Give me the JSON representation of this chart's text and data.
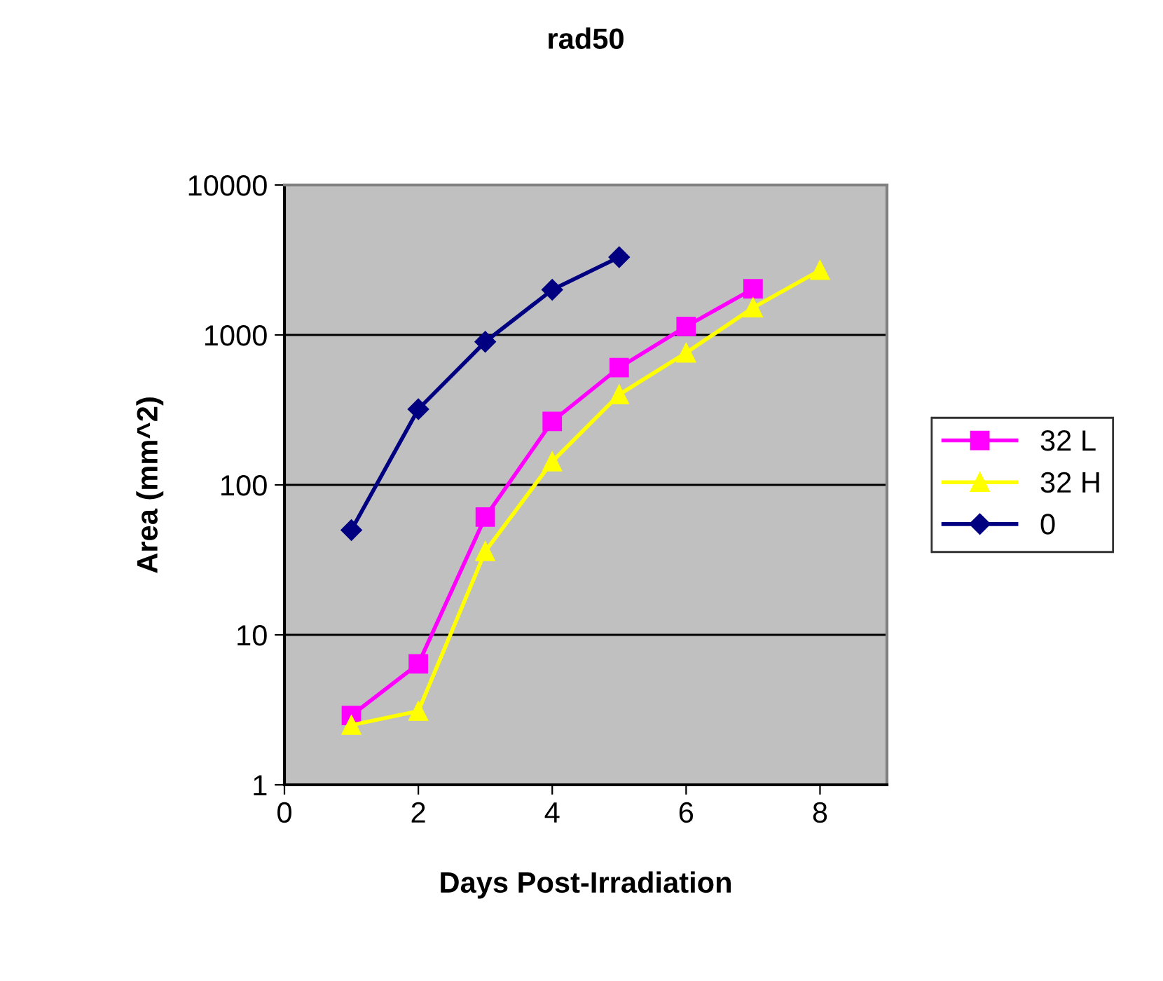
{
  "chart_data": {
    "type": "line",
    "title": "rad50",
    "xlabel": "Days Post-Irradiation",
    "ylabel": "Area (mm^2)",
    "log": "y",
    "xlim": [
      0,
      9
    ],
    "xticks": [
      0,
      2,
      4,
      6,
      8
    ],
    "ylim": [
      1,
      10000
    ],
    "yticks": [
      1,
      10,
      100,
      1000,
      10000
    ],
    "grid": "y",
    "legend": "right",
    "series": [
      {
        "name": "32 L",
        "color": "#ff00ff",
        "marker": "square",
        "x": [
          1,
          2,
          3,
          4,
          5,
          6,
          7
        ],
        "values": [
          2.9,
          6.4,
          61,
          265,
          605,
          1140,
          2030
        ]
      },
      {
        "name": "32 H",
        "color": "#ffff00",
        "marker": "triangle",
        "x": [
          1,
          2,
          3,
          4,
          5,
          6,
          7,
          8
        ],
        "values": [
          2.5,
          3.1,
          36,
          143,
          400,
          760,
          1520,
          2700
        ]
      },
      {
        "name": "0",
        "color": "#000080",
        "marker": "diamond",
        "x": [
          1,
          2,
          3,
          4,
          5
        ],
        "values": [
          50,
          320,
          900,
          2000,
          3300
        ]
      }
    ]
  }
}
